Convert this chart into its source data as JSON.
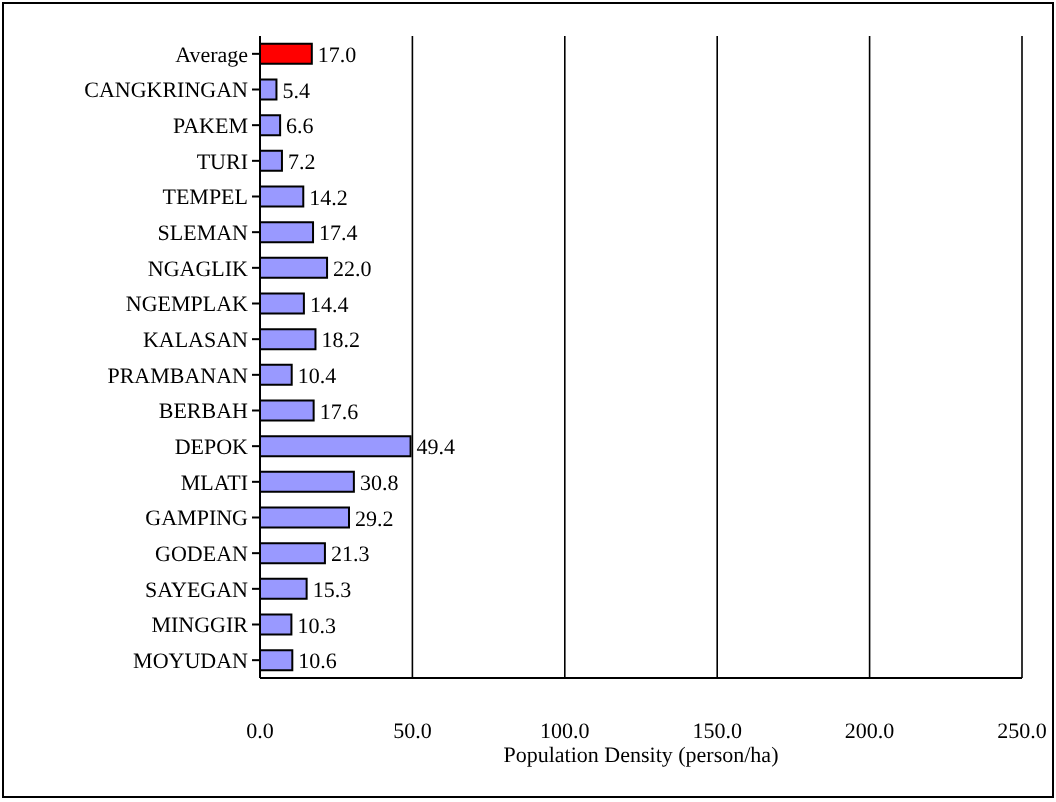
{
  "chart_data": {
    "type": "bar",
    "orientation": "horizontal",
    "xlabel": "Population Density (person/ha)",
    "categories": [
      "Average",
      "CANGKRINGAN",
      "PAKEM",
      "TURI",
      "TEMPEL",
      "SLEMAN",
      "NGAGLIK",
      "NGEMPLAK",
      "KALASAN",
      "PRAMBANAN",
      "BERBAH",
      "DEPOK",
      "MLATI",
      "GAMPING",
      "GODEAN",
      "SAYEGAN",
      "MINGGIR",
      "MOYUDAN"
    ],
    "values": [
      17.0,
      5.4,
      6.6,
      7.2,
      14.2,
      17.4,
      22.0,
      14.4,
      18.2,
      10.4,
      17.6,
      49.4,
      30.8,
      29.2,
      21.3,
      15.3,
      10.3,
      10.6
    ],
    "value_labels": [
      "17.0",
      "5.4",
      "6.6",
      "7.2",
      "14.2",
      "17.4",
      "22.0",
      "14.4",
      "18.2",
      "10.4",
      "17.6",
      "49.4",
      "30.8",
      "29.2",
      "21.3",
      "15.3",
      "10.3",
      "10.6"
    ],
    "colors": [
      "#ff0000",
      "#9999ff",
      "#9999ff",
      "#9999ff",
      "#9999ff",
      "#9999ff",
      "#9999ff",
      "#9999ff",
      "#9999ff",
      "#9999ff",
      "#9999ff",
      "#9999ff",
      "#9999ff",
      "#9999ff",
      "#9999ff",
      "#9999ff",
      "#9999ff",
      "#9999ff"
    ],
    "xlim": [
      0,
      250
    ],
    "xticks": [
      {
        "value": 0,
        "label": "0.0"
      },
      {
        "value": 50,
        "label": "50.0"
      },
      {
        "value": 100,
        "label": "100.0"
      },
      {
        "value": 150,
        "label": "150.0"
      },
      {
        "value": 200,
        "label": "200.0"
      },
      {
        "value": 250,
        "label": "250.0"
      }
    ],
    "grid": "x"
  }
}
